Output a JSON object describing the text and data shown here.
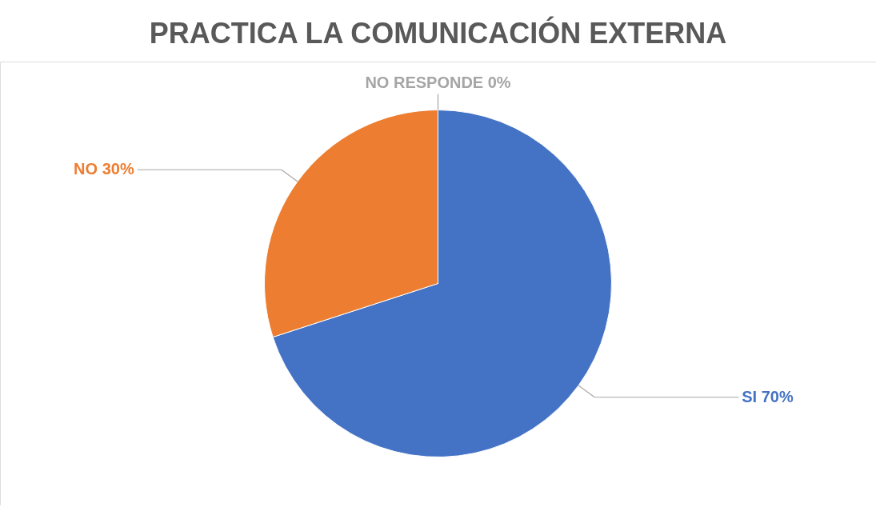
{
  "chart_data": {
    "type": "pie",
    "title": "PRACTICA LA COMUNICACIÓN EXTERNA",
    "categories": [
      "SI",
      "NO",
      "NO RESPONDE"
    ],
    "values": [
      70,
      30,
      0
    ],
    "colors": [
      "#4472c4",
      "#ed7d31",
      "#a5a5a5"
    ],
    "value_labels": [
      "70%",
      "30%",
      "0%"
    ],
    "legend": false
  }
}
